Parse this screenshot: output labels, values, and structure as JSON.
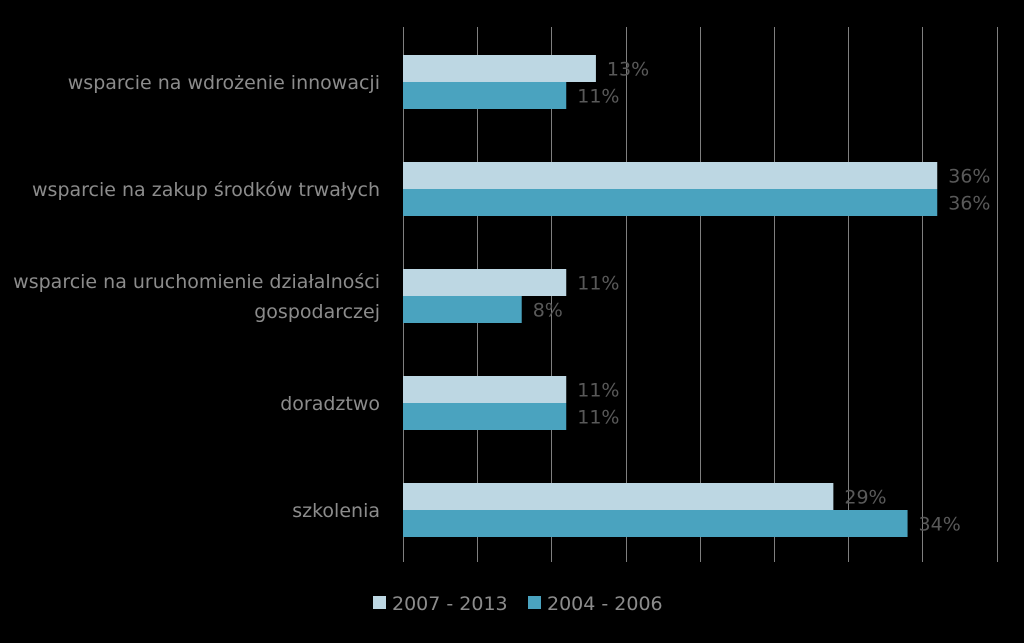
{
  "chart_data": {
    "type": "bar",
    "orientation": "horizontal",
    "categories": [
      [
        "wsparcie na wdrożenie innowacji"
      ],
      [
        "wsparcie na zakup środków trwałych"
      ],
      [
        "wsparcie na uruchomienie działalności",
        "gospodarczej"
      ],
      [
        "doradztwo"
      ],
      [
        "szkolenia"
      ]
    ],
    "series": [
      {
        "name": "2007 - 2013",
        "color": "#bdd7e3",
        "values": [
          13,
          36,
          11,
          11,
          29
        ],
        "labels": [
          "13%",
          "36%",
          "11%",
          "11%",
          "29%"
        ]
      },
      {
        "name": "2004 - 2006",
        "color": "#4aa3bf",
        "values": [
          11,
          36,
          8,
          11,
          34
        ],
        "labels": [
          "11%",
          "36%",
          "8%",
          "11%",
          "34%"
        ]
      }
    ],
    "xlim": [
      0,
      40
    ],
    "grid": true,
    "legend": "bottom"
  }
}
